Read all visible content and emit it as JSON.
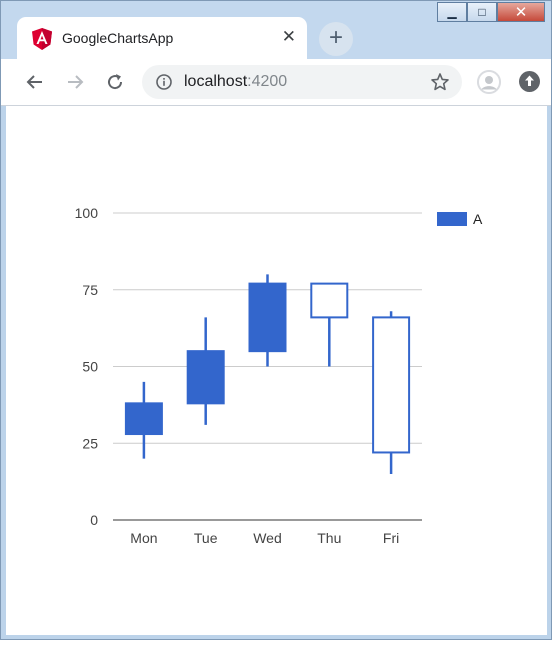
{
  "browser": {
    "tab_title": "GoogleChartsApp",
    "tab_close": "✕",
    "new_tab": "+",
    "url_host": "localhost",
    "url_port": ":4200",
    "window_controls": {
      "minimize": "▁",
      "maximize": "□",
      "close": "✕"
    }
  },
  "icons": {
    "tab": "angular-logo-icon",
    "back": "back-arrow-icon",
    "forward": "forward-arrow-icon",
    "reload": "reload-icon",
    "info": "info-icon",
    "star": "star-icon",
    "profile": "profile-avatar-icon",
    "update": "update-icon"
  },
  "colors": {
    "series": "#3366cc",
    "angular": "#dd0031"
  },
  "chart_data": {
    "type": "candlestick",
    "categories": [
      "Mon",
      "Tue",
      "Wed",
      "Thu",
      "Fri"
    ],
    "series": [
      {
        "name": "A",
        "candles": [
          {
            "low": 20,
            "open": 28,
            "close": 38,
            "high": 45
          },
          {
            "low": 31,
            "open": 38,
            "close": 55,
            "high": 66
          },
          {
            "low": 50,
            "open": 55,
            "close": 77,
            "high": 80
          },
          {
            "low": 50,
            "open": 77,
            "close": 66,
            "high": 77
          },
          {
            "low": 15,
            "open": 66,
            "close": 22,
            "high": 68
          }
        ]
      }
    ],
    "yticks": [
      "0",
      "25",
      "50",
      "75",
      "100"
    ],
    "ylim": [
      0,
      100
    ],
    "grid": true,
    "legend": "right"
  }
}
